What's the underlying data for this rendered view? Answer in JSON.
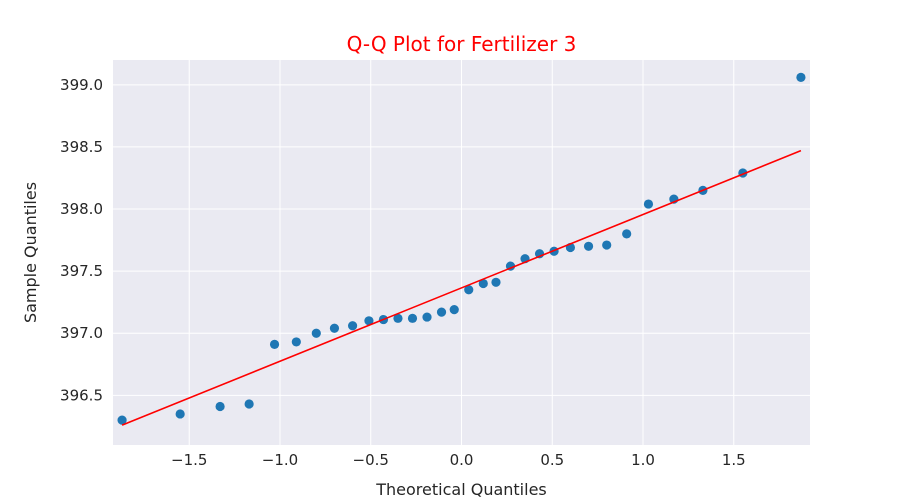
{
  "chart_data": {
    "type": "scatter",
    "title": "Q-Q Plot for Fertilizer 3",
    "xlabel": "Theoretical Quantiles",
    "ylabel": "Sample Quantiles",
    "xlim": [
      -1.92,
      1.92
    ],
    "ylim": [
      396.1,
      399.2
    ],
    "xticks": [
      -1.5,
      -1.0,
      -0.5,
      0.0,
      0.5,
      1.0,
      1.5
    ],
    "xtick_labels": [
      "−1.5",
      "−1.0",
      "−0.5",
      "0.0",
      "0.5",
      "1.0",
      "1.5"
    ],
    "yticks": [
      396.5,
      397.0,
      397.5,
      398.0,
      398.5,
      399.0
    ],
    "ytick_labels": [
      "396.5",
      "397.0",
      "397.5",
      "398.0",
      "398.5",
      "399.0"
    ],
    "grid": true,
    "series": [
      {
        "type": "scatter",
        "color": "#1f77b4",
        "x": [
          -1.87,
          -1.55,
          -1.33,
          -1.17,
          -1.03,
          -0.91,
          -0.8,
          -0.7,
          -0.6,
          -0.51,
          -0.43,
          -0.35,
          -0.27,
          -0.19,
          -0.11,
          -0.04,
          0.04,
          0.12,
          0.19,
          0.27,
          0.35,
          0.43,
          0.51,
          0.6,
          0.7,
          0.8,
          0.91,
          1.03,
          1.17,
          1.33,
          1.55,
          1.87
        ],
        "y": [
          396.3,
          396.35,
          396.41,
          396.43,
          396.91,
          396.93,
          397.0,
          397.04,
          397.06,
          397.1,
          397.11,
          397.12,
          397.12,
          397.13,
          397.17,
          397.19,
          397.35,
          397.4,
          397.41,
          397.54,
          397.6,
          397.64,
          397.66,
          397.69,
          397.7,
          397.71,
          397.8,
          398.04,
          398.08,
          398.15,
          398.29,
          399.06
        ]
      },
      {
        "type": "line",
        "color": "#ff0000",
        "x": [
          -1.87,
          1.87
        ],
        "y": [
          396.26,
          398.47
        ]
      }
    ]
  },
  "colors": {
    "plot_background": "#eaeaf2",
    "grid": "#ffffff",
    "title": "#ff0000",
    "points": "#1f77b4",
    "reference_line": "#ff0000"
  }
}
